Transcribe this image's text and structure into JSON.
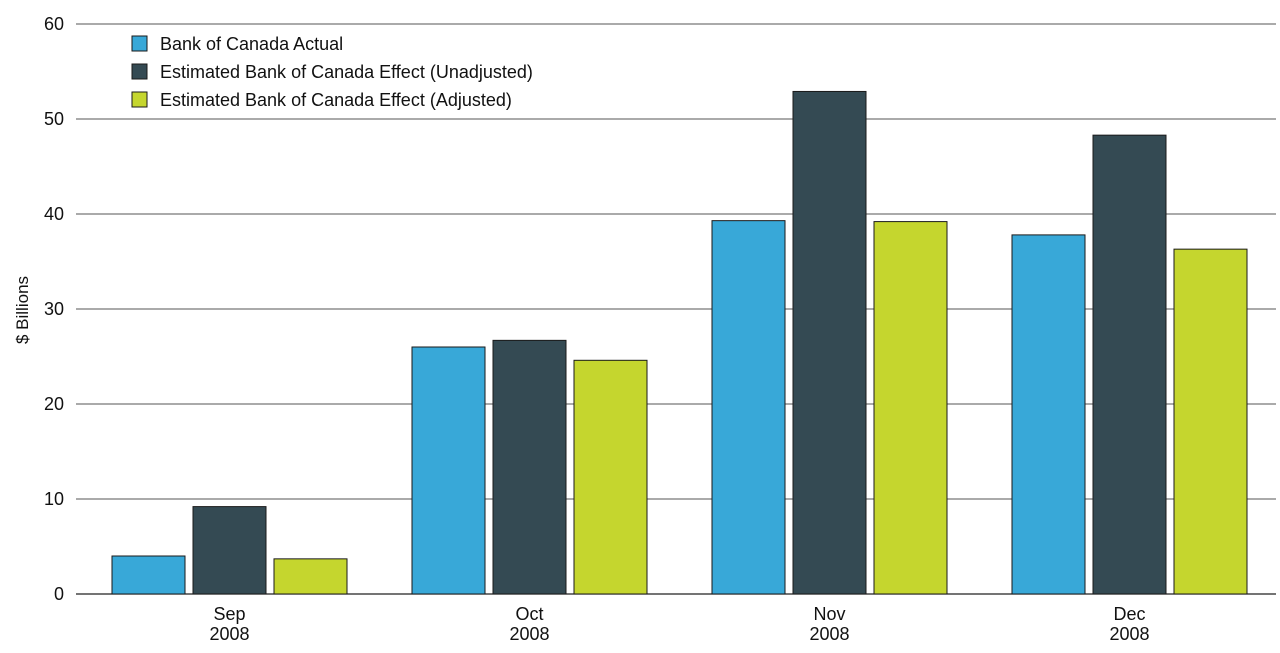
{
  "chart_data": {
    "type": "bar",
    "title": "",
    "xlabel": "",
    "ylabel": "$ Billions",
    "ylim": [
      0,
      60
    ],
    "yticks": [
      0,
      10,
      20,
      30,
      40,
      50,
      60
    ],
    "grid": true,
    "legend_position": "top-left",
    "categories": [
      {
        "line1": "Sep",
        "line2": "2008"
      },
      {
        "line1": "Oct",
        "line2": "2008"
      },
      {
        "line1": "Nov",
        "line2": "2008"
      },
      {
        "line1": "Dec",
        "line2": "2008"
      }
    ],
    "series": [
      {
        "name": "Bank of Canada Actual",
        "color": "#38a8d8",
        "values": [
          4.0,
          26.0,
          39.3,
          37.8
        ]
      },
      {
        "name": "Estimated Bank of Canada Effect (Unadjusted)",
        "color": "#344a53",
        "values": [
          9.2,
          26.7,
          52.9,
          48.3
        ]
      },
      {
        "name": "Estimated Bank of Canada Effect (Adjusted)",
        "color": "#c5d62e",
        "values": [
          3.7,
          24.6,
          39.2,
          36.3
        ]
      }
    ]
  }
}
